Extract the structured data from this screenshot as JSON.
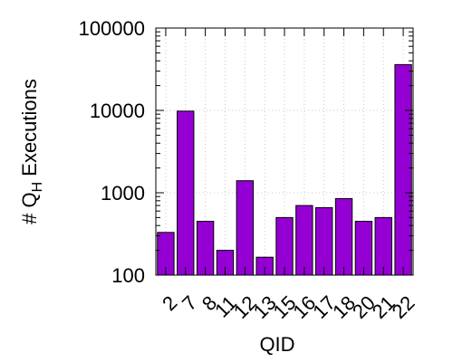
{
  "chart_data": {
    "type": "bar",
    "xlabel": "QID",
    "ylabel": {
      "prefix": "# Q",
      "subscript": "H",
      "suffix": " Executions"
    },
    "y_scale": "log",
    "ylim": [
      100,
      100000
    ],
    "y_ticks": [
      100,
      1000,
      10000,
      100000
    ],
    "y_tick_labels": [
      "100",
      "1000",
      "10000",
      "100000"
    ],
    "grid": true,
    "legend": "none",
    "bar_color": "#9400d3",
    "categories": [
      "2",
      "7",
      "8",
      "11",
      "12",
      "13",
      "15",
      "16",
      "17",
      "18",
      "20",
      "21",
      "22"
    ],
    "values": [
      330,
      9800,
      450,
      200,
      1400,
      165,
      500,
      700,
      660,
      850,
      450,
      500,
      36000
    ]
  }
}
